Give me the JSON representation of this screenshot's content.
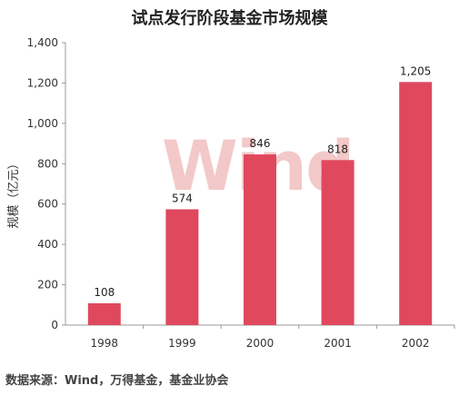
{
  "chart_data": {
    "type": "bar",
    "title": "试点发行阶段基金市场规模",
    "ylabel": "规模（亿元）",
    "xlabel": "",
    "categories": [
      "1998",
      "1999",
      "2000",
      "2001",
      "2002"
    ],
    "values": [
      108,
      574,
      846,
      818,
      1205
    ],
    "data_labels": [
      "108",
      "574",
      "846",
      "818",
      "1,205"
    ],
    "yticks": [
      "0",
      "200",
      "400",
      "600",
      "800",
      "1,000",
      "1,200",
      "1,400"
    ],
    "ylim": [
      0,
      1400
    ],
    "grid": false,
    "bar_color": "#e0485e"
  },
  "watermark": "Wind",
  "source": "数据来源：Wind，万得基金，基金业协会"
}
